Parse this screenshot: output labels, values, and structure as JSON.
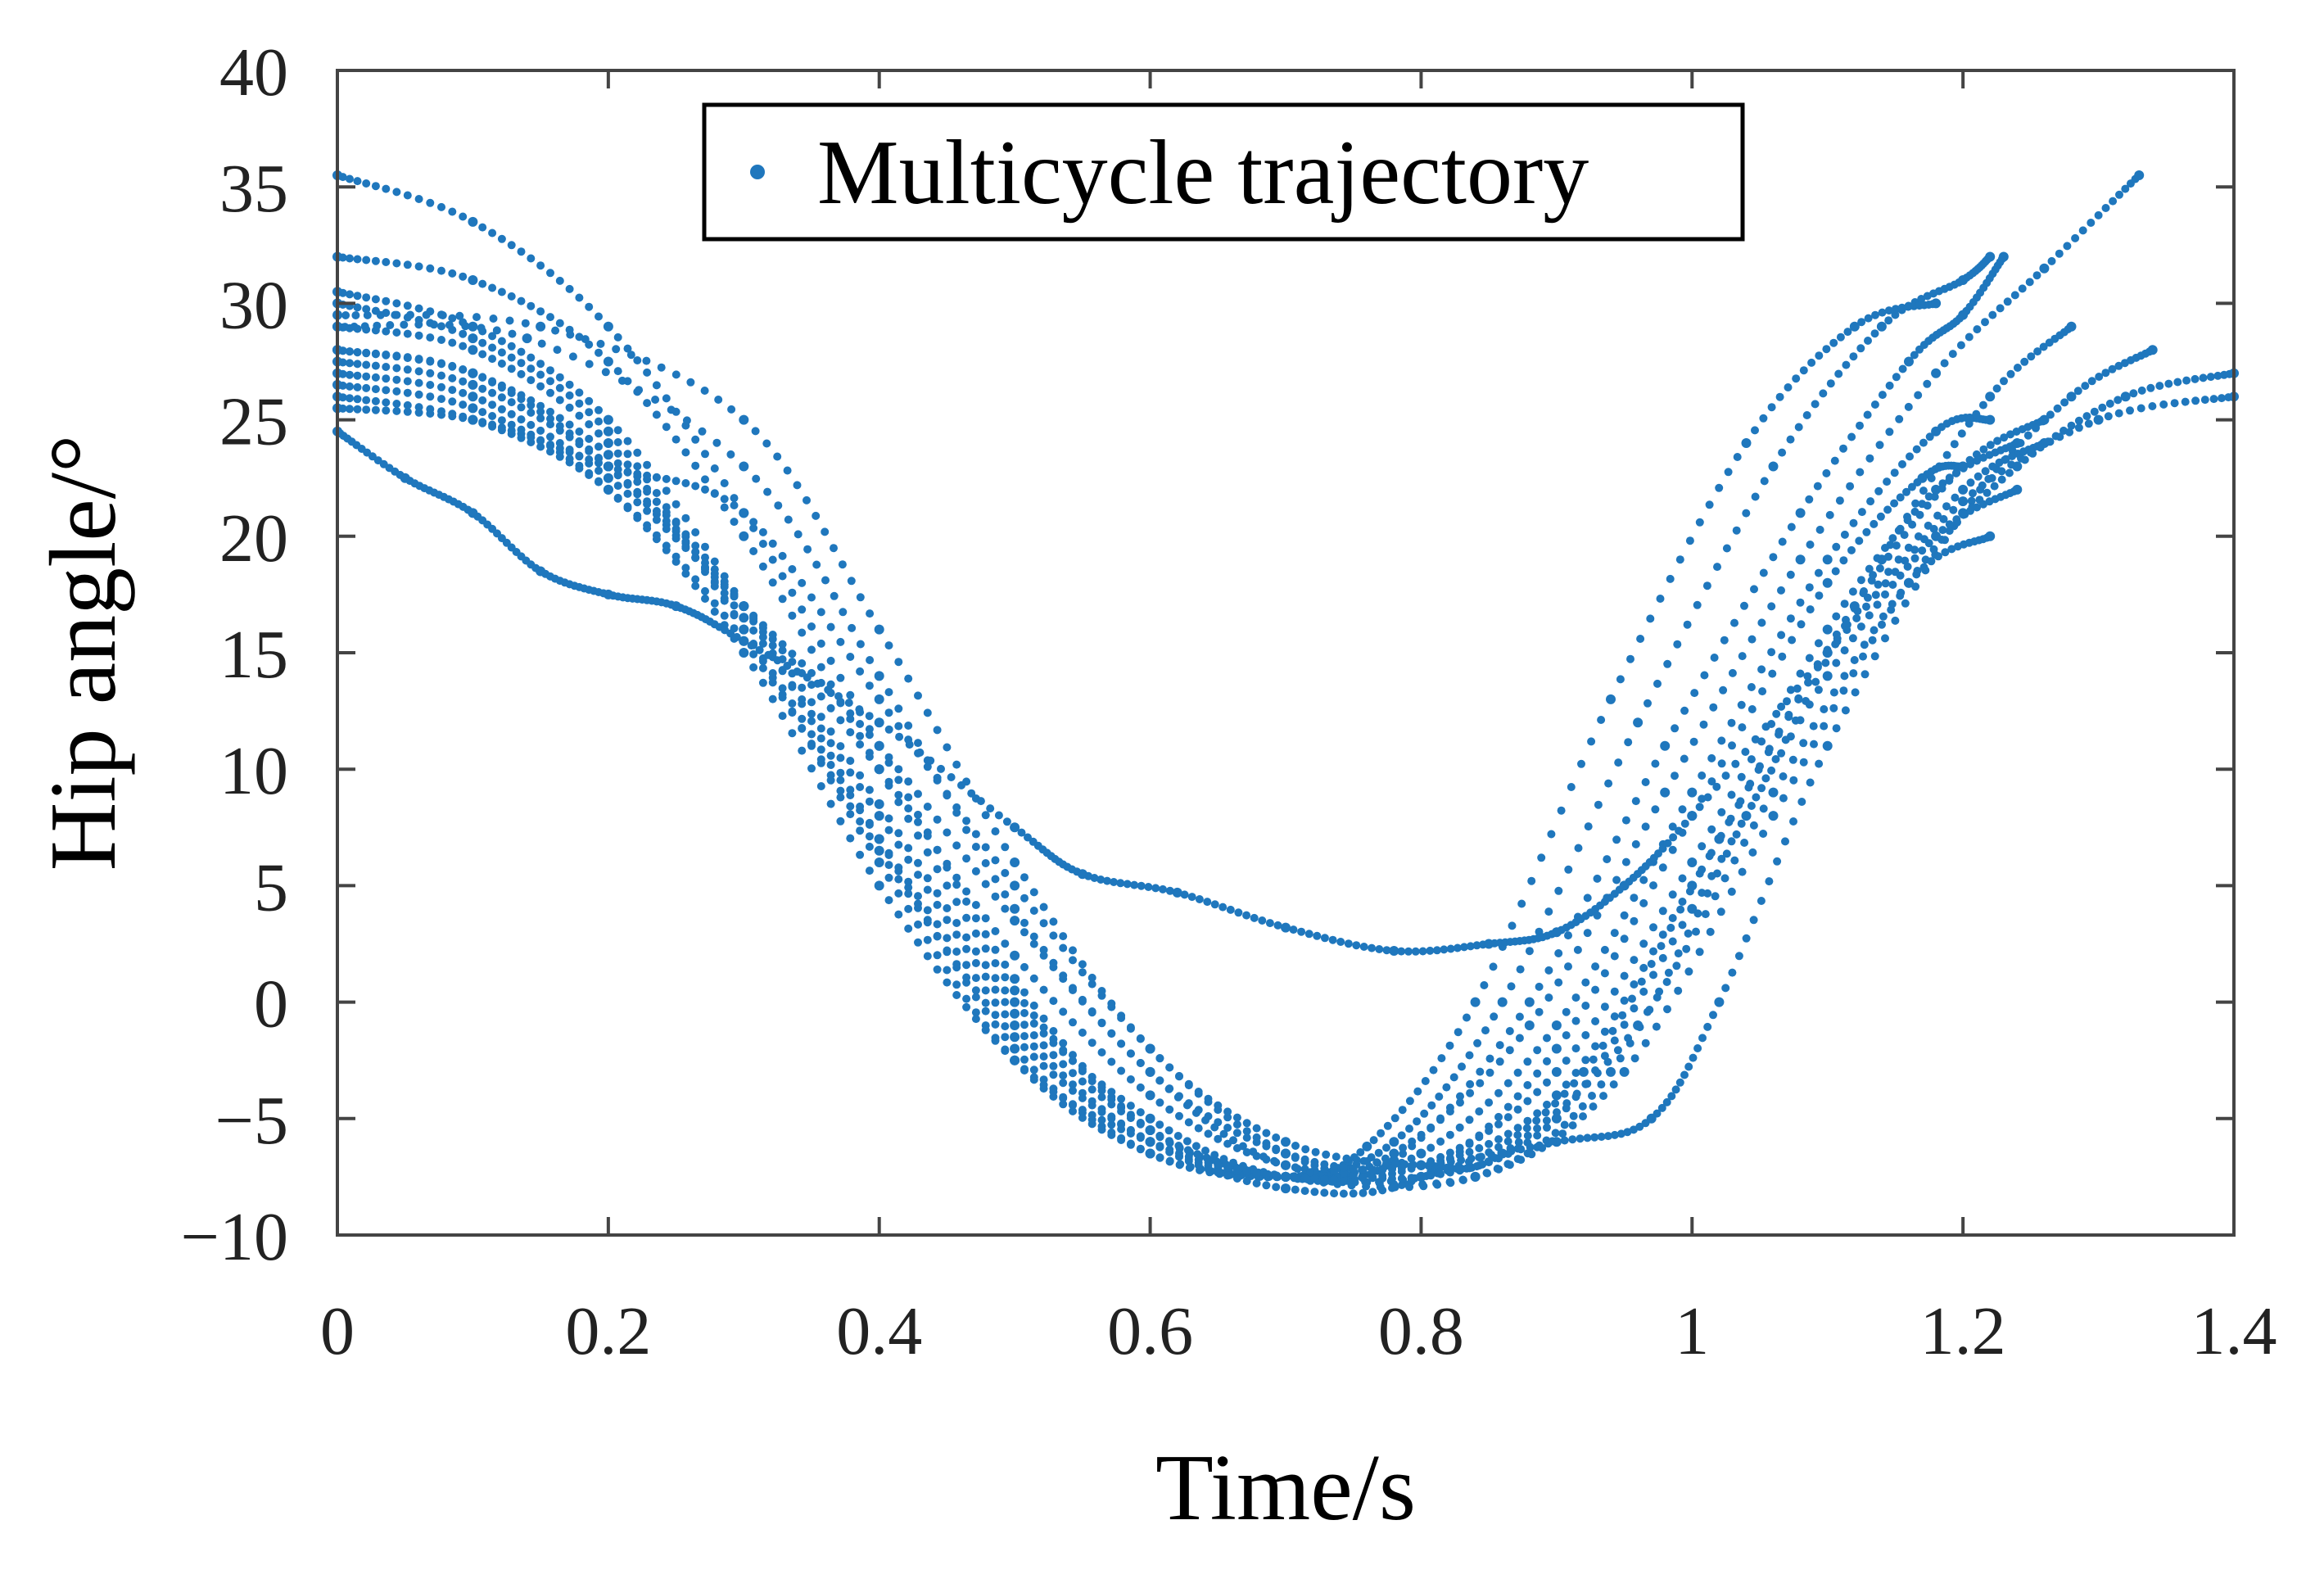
{
  "chart_data": {
    "type": "scatter",
    "title": "",
    "xlabel": "Time/s",
    "ylabel": "Hip angle/°",
    "xlim": [
      0,
      1.4
    ],
    "ylim": [
      -10,
      40
    ],
    "xticks": [
      0,
      0.2,
      0.4,
      0.6,
      0.8,
      1,
      1.2,
      1.4
    ],
    "xtick_labels": [
      "0",
      "0.2",
      "0.4",
      "0.6",
      "0.8",
      "1",
      "1.2",
      "1.4"
    ],
    "yticks": [
      -10,
      -5,
      0,
      5,
      10,
      15,
      20,
      25,
      30,
      35,
      40
    ],
    "ytick_labels": [
      "−10",
      "−5",
      "0",
      "5",
      "10",
      "15",
      "20",
      "25",
      "30",
      "35",
      "40"
    ],
    "grid": false,
    "legend": {
      "position": "top-center",
      "entries": [
        "Multicycle trajectory"
      ]
    },
    "series_color": "#1f77bd",
    "series": [
      {
        "name": "Multicycle trajectory",
        "cycles": [
          {
            "points": [
              [
                0,
                35.5
              ],
              [
                0.1,
                33.5
              ],
              [
                0.2,
                29
              ],
              [
                0.3,
                21
              ],
              [
                0.4,
                11
              ],
              [
                0.5,
                1
              ],
              [
                0.6,
                -5.5
              ],
              [
                0.7,
                -7.5
              ],
              [
                0.78,
                -6.5
              ],
              [
                0.88,
                -1
              ],
              [
                0.98,
                9
              ],
              [
                1.08,
                19
              ],
              [
                1.18,
                27
              ],
              [
                1.26,
                31.5
              ],
              [
                1.33,
                35.5
              ]
            ]
          },
          {
            "points": [
              [
                0,
                32
              ],
              [
                0.1,
                31
              ],
              [
                0.2,
                27.5
              ],
              [
                0.3,
                20
              ],
              [
                0.4,
                10
              ],
              [
                0.5,
                0.5
              ],
              [
                0.6,
                -5.5
              ],
              [
                0.7,
                -7.5
              ],
              [
                0.78,
                -6.8
              ],
              [
                0.88,
                0
              ],
              [
                0.98,
                11
              ],
              [
                1.08,
                21
              ],
              [
                1.16,
                27.5
              ],
              [
                1.2,
                29.5
              ],
              [
                1.23,
                32
              ]
            ]
          },
          {
            "points": [
              [
                0,
                30.5
              ],
              [
                0.1,
                29
              ],
              [
                0.2,
                25
              ],
              [
                0.3,
                17
              ],
              [
                0.4,
                7
              ],
              [
                0.5,
                -2
              ],
              [
                0.6,
                -6.5
              ],
              [
                0.7,
                -7.5
              ],
              [
                0.78,
                -6
              ],
              [
                0.86,
                0
              ],
              [
                0.96,
                12
              ],
              [
                1.06,
                23
              ],
              [
                1.14,
                29
              ],
              [
                1.2,
                31
              ],
              [
                1.22,
                32
              ]
            ]
          },
          {
            "points": [
              [
                0,
                30
              ],
              [
                0.1,
                28.5
              ],
              [
                0.2,
                24.5
              ],
              [
                0.3,
                16
              ],
              [
                0.4,
                6
              ],
              [
                0.5,
                -2.5
              ],
              [
                0.6,
                -6.5
              ],
              [
                0.7,
                -7.5
              ],
              [
                0.76,
                -6.2
              ],
              [
                0.84,
                0
              ],
              [
                0.94,
                13
              ],
              [
                1.04,
                24
              ],
              [
                1.12,
                29
              ],
              [
                1.18,
                30
              ]
            ]
          },
          {
            "points": [
              [
                0,
                29
              ],
              [
                0.1,
                28
              ],
              [
                0.2,
                24
              ],
              [
                0.3,
                16
              ],
              [
                0.4,
                7
              ],
              [
                0.5,
                -1
              ],
              [
                0.6,
                -6
              ],
              [
                0.7,
                -7.5
              ],
              [
                0.8,
                -6.5
              ],
              [
                0.9,
                -1
              ],
              [
                1.0,
                9
              ],
              [
                1.1,
                19
              ],
              [
                1.18,
                24.5
              ],
              [
                1.22,
                25
              ]
            ]
          },
          {
            "points": [
              [
                0,
                28
              ],
              [
                0.1,
                27
              ],
              [
                0.2,
                23
              ],
              [
                0.3,
                16.5
              ],
              [
                0.4,
                8
              ],
              [
                0.5,
                -0.5
              ],
              [
                0.6,
                -5.5
              ],
              [
                0.7,
                -7.5
              ],
              [
                0.82,
                -7.2
              ],
              [
                0.92,
                -3
              ],
              [
                1.02,
                7
              ],
              [
                1.12,
                17
              ],
              [
                1.2,
                23
              ],
              [
                1.26,
                25
              ]
            ]
          },
          {
            "points": [
              [
                0,
                28
              ],
              [
                0.1,
                27
              ],
              [
                0.2,
                23.5
              ],
              [
                0.3,
                17
              ],
              [
                0.4,
                8.5
              ],
              [
                0.5,
                0
              ],
              [
                0.6,
                -5
              ],
              [
                0.7,
                -7.5
              ],
              [
                0.84,
                -7.5
              ],
              [
                0.94,
                -3
              ],
              [
                1.04,
                8
              ],
              [
                1.14,
                19
              ],
              [
                1.22,
                26
              ],
              [
                1.28,
                29
              ]
            ]
          },
          {
            "points": [
              [
                0,
                27.5
              ],
              [
                0.1,
                26.5
              ],
              [
                0.2,
                23
              ],
              [
                0.3,
                17
              ],
              [
                0.4,
                10
              ],
              [
                0.5,
                2
              ],
              [
                0.6,
                -4
              ],
              [
                0.7,
                -7
              ],
              [
                0.8,
                -7
              ],
              [
                0.9,
                -6
              ],
              [
                0.97,
                -5
              ],
              [
                1.02,
                0
              ],
              [
                1.1,
                11
              ],
              [
                1.2,
                21
              ],
              [
                1.28,
                26
              ],
              [
                1.34,
                28
              ]
            ]
          },
          {
            "points": [
              [
                0,
                27
              ],
              [
                0.1,
                26
              ],
              [
                0.2,
                22.5
              ],
              [
                0.3,
                17
              ],
              [
                0.4,
                11
              ],
              [
                0.5,
                3.5
              ],
              [
                0.6,
                -3
              ],
              [
                0.7,
                -7
              ],
              [
                0.84,
                -7.5
              ],
              [
                0.95,
                -3
              ],
              [
                1.06,
                8
              ],
              [
                1.16,
                18
              ],
              [
                1.24,
                23
              ],
              [
                1.32,
                26
              ],
              [
                1.4,
                27
              ]
            ]
          },
          {
            "points": [
              [
                0,
                26.5
              ],
              [
                0.1,
                25.5
              ],
              [
                0.2,
                22
              ],
              [
                0.3,
                15
              ],
              [
                0.4,
                5
              ],
              [
                0.5,
                -2.5
              ],
              [
                0.6,
                -6
              ],
              [
                0.7,
                -7.5
              ],
              [
                0.8,
                -7
              ],
              [
                0.9,
                -3
              ],
              [
                1.0,
                6
              ],
              [
                1.1,
                16
              ],
              [
                1.18,
                22
              ],
              [
                1.24,
                24
              ]
            ]
          },
          {
            "points": [
              [
                0,
                26
              ],
              [
                0.1,
                25
              ],
              [
                0.2,
                22
              ],
              [
                0.3,
                15.5
              ],
              [
                0.4,
                6.5
              ],
              [
                0.5,
                -1.5
              ],
              [
                0.6,
                -6
              ],
              [
                0.7,
                -8
              ],
              [
                0.8,
                -7.5
              ],
              [
                0.9,
                -2
              ],
              [
                1.0,
                8
              ],
              [
                1.1,
                18
              ],
              [
                1.17,
                22.5
              ],
              [
                1.2,
                23
              ]
            ]
          },
          {
            "points": [
              [
                0,
                25.5
              ],
              [
                0.1,
                25
              ],
              [
                0.2,
                23
              ],
              [
                0.3,
                21
              ],
              [
                0.4,
                13
              ],
              [
                0.5,
                5
              ],
              [
                0.6,
                -2
              ],
              [
                0.7,
                -6.5
              ],
              [
                0.8,
                -7.5
              ],
              [
                0.9,
                -5
              ],
              [
                1.0,
                4
              ],
              [
                1.1,
                14
              ],
              [
                1.18,
                20
              ],
              [
                1.24,
                22
              ]
            ]
          },
          {
            "points": [
              [
                0,
                29.5
              ],
              [
                0.15,
                29
              ],
              [
                0.3,
                25
              ],
              [
                0.4,
                16
              ],
              [
                0.5,
                6
              ],
              [
                0.6,
                -2
              ],
              [
                0.7,
                -6
              ],
              [
                0.8,
                -7
              ],
              [
                0.86,
                -6.5
              ],
              [
                0.96,
                -1
              ],
              [
                1.06,
                9
              ],
              [
                1.16,
                18
              ],
              [
                1.22,
                20
              ]
            ]
          },
          {
            "points": [
              [
                0,
                29
              ],
              [
                0.14,
                28.5
              ],
              [
                0.3,
                23
              ],
              [
                0.4,
                14
              ],
              [
                0.5,
                4
              ],
              [
                0.6,
                -3
              ],
              [
                0.7,
                -6.5
              ],
              [
                0.8,
                -7
              ],
              [
                0.9,
                -4
              ],
              [
                1.0,
                5
              ],
              [
                1.1,
                15
              ],
              [
                1.2,
                22
              ],
              [
                1.26,
                24
              ]
            ]
          },
          {
            "points": [
              [
                0,
                24.5
              ],
              [
                0.05,
                22.5
              ],
              [
                0.1,
                21
              ],
              [
                0.15,
                18.5
              ],
              [
                0.2,
                17.5
              ],
              [
                0.25,
                17
              ],
              [
                0.3,
                15.5
              ],
              [
                0.4,
                12
              ],
              [
                0.5,
                7.5
              ],
              [
                0.55,
                5.5
              ],
              [
                0.62,
                4.7
              ],
              [
                0.7,
                3.2
              ],
              [
                0.78,
                2.2
              ],
              [
                0.85,
                2.5
              ],
              [
                0.9,
                3
              ],
              [
                0.95,
                5
              ],
              [
                1.0,
                8
              ],
              [
                1.1,
                15
              ],
              [
                1.2,
                21.5
              ],
              [
                1.3,
                25
              ],
              [
                1.4,
                26
              ]
            ]
          }
        ]
      }
    ]
  }
}
